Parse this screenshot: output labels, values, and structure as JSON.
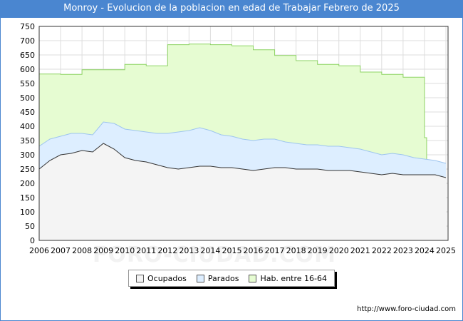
{
  "header": {
    "title": "Monroy - Evolucion de la poblacion en edad de Trabajar Febrero de 2025"
  },
  "footer": {
    "url": "http://www.foro-ciudad.com"
  },
  "watermark": "FORO-CIUDAD.COM",
  "chart_data": {
    "type": "area",
    "title": "Monroy - Evolucion de la poblacion en edad de Trabajar Febrero de 2025",
    "x_ticks": [
      "2006",
      "2007",
      "2008",
      "2009",
      "2010",
      "2011",
      "2012",
      "2013",
      "2014",
      "2015",
      "2016",
      "2017",
      "2018",
      "2019",
      "2020",
      "2021",
      "2022",
      "2023",
      "2024",
      "2025"
    ],
    "y_ticks": [
      "0",
      "50",
      "100",
      "150",
      "200",
      "250",
      "300",
      "350",
      "400",
      "450",
      "500",
      "550",
      "600",
      "650",
      "700",
      "750"
    ],
    "ylim": [
      0,
      750
    ],
    "xlim": [
      2006,
      2025.1
    ],
    "grid": true,
    "legend_position": "bottom-center",
    "colors": {
      "ocupados": "#f4f4f4",
      "parados": "#ddeeff",
      "hab": "#e6fcd2",
      "ocupados_line": "#333333",
      "parados_line": "#9ec5ee",
      "hab_line": "#8ed364"
    },
    "series": [
      {
        "name": "Ocupados",
        "key": "ocupados",
        "x": [
          2006,
          2006.5,
          2007,
          2007.5,
          2008,
          2008.5,
          2009,
          2009.5,
          2010,
          2010.5,
          2011,
          2011.5,
          2012,
          2012.5,
          2013,
          2013.5,
          2014,
          2014.5,
          2015,
          2015.5,
          2016,
          2016.5,
          2017,
          2017.5,
          2018,
          2018.5,
          2019,
          2019.5,
          2020,
          2020.5,
          2021,
          2021.5,
          2022,
          2022.5,
          2023,
          2023.5,
          2024,
          2024.5,
          2025
        ],
        "values": [
          250,
          280,
          300,
          305,
          315,
          310,
          340,
          320,
          290,
          280,
          275,
          265,
          255,
          250,
          255,
          260,
          260,
          255,
          255,
          250,
          245,
          250,
          255,
          255,
          250,
          250,
          250,
          245,
          245,
          245,
          240,
          235,
          230,
          235,
          230,
          230,
          230,
          230,
          220
        ]
      },
      {
        "name": "Parados",
        "key": "parados",
        "x": [
          2006,
          2006.5,
          2007,
          2007.5,
          2008,
          2008.5,
          2009,
          2009.5,
          2010,
          2010.5,
          2011,
          2011.5,
          2012,
          2012.5,
          2013,
          2013.5,
          2014,
          2014.5,
          2015,
          2015.5,
          2016,
          2016.5,
          2017,
          2017.5,
          2018,
          2018.5,
          2019,
          2019.5,
          2020,
          2020.5,
          2021,
          2021.5,
          2022,
          2022.5,
          2023,
          2023.5,
          2024,
          2024.5,
          2025
        ],
        "values": [
          330,
          355,
          365,
          375,
          375,
          370,
          415,
          410,
          390,
          385,
          380,
          375,
          375,
          380,
          385,
          395,
          385,
          370,
          365,
          355,
          350,
          355,
          355,
          345,
          340,
          335,
          335,
          330,
          330,
          325,
          320,
          310,
          300,
          305,
          300,
          290,
          285,
          280,
          270
        ]
      },
      {
        "name": "Hab. entre 16-64",
        "key": "hab",
        "x": [
          2006,
          2007,
          2008,
          2009,
          2010,
          2011,
          2012,
          2013,
          2014,
          2015,
          2016,
          2017,
          2018,
          2019,
          2020,
          2021,
          2022,
          2023,
          2024
        ],
        "values": [
          583,
          582,
          598,
          598,
          617,
          612,
          686,
          688,
          686,
          682,
          668,
          648,
          630,
          617,
          612,
          590,
          582,
          572,
          360
        ]
      }
    ]
  }
}
